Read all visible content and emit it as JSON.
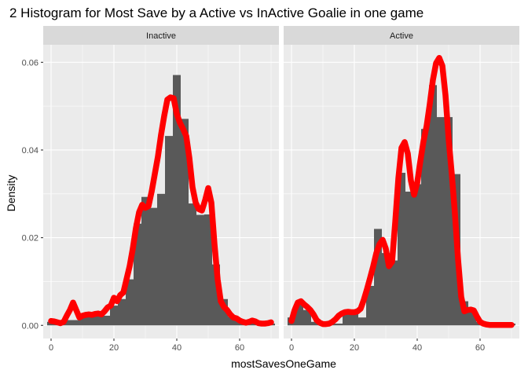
{
  "chart_data": {
    "type": "histogram-density",
    "title": "2 Histogram for Most Save by a Active vs InActive Goalie in one game",
    "xlabel": "mostSavesOneGame",
    "ylabel": "Density",
    "xlim": [
      -2.5,
      72.5
    ],
    "ylim": [
      -0.003,
      0.064
    ],
    "x_ticks": [
      0,
      20,
      40,
      60
    ],
    "x_tick_labels": [
      "0",
      "20",
      "40",
      "60"
    ],
    "y_ticks": [
      0,
      0.02,
      0.04,
      0.06
    ],
    "y_tick_labels": [
      "0.00",
      "0.02",
      "0.04",
      "0.06"
    ],
    "bin_width": 2.5,
    "grid": true,
    "colors": {
      "panel": "#ebebeb",
      "grid": "#ffffff",
      "strip": "#d9d9d9",
      "bar": "#595959",
      "density": "#ff0000"
    },
    "panels": [
      {
        "strip_label": "Inactive",
        "bins": [
          {
            "x0": -1.25,
            "density": 0.0008
          },
          {
            "x0": 1.25,
            "density": 0.0006
          },
          {
            "x0": 3.75,
            "density": 0.0012
          },
          {
            "x0": 6.25,
            "density": 0.0012
          },
          {
            "x0": 8.75,
            "density": 0.0022
          },
          {
            "x0": 11.25,
            "density": 0.0022
          },
          {
            "x0": 13.75,
            "density": 0.0022
          },
          {
            "x0": 16.25,
            "density": 0.0022
          },
          {
            "x0": 18.75,
            "density": 0.0045
          },
          {
            "x0": 21.25,
            "density": 0.006
          },
          {
            "x0": 23.75,
            "density": 0.0105
          },
          {
            "x0": 26.25,
            "density": 0.0232
          },
          {
            "x0": 28.75,
            "density": 0.0293
          },
          {
            "x0": 31.25,
            "density": 0.0268
          },
          {
            "x0": 33.75,
            "density": 0.03
          },
          {
            "x0": 36.25,
            "density": 0.0432
          },
          {
            "x0": 38.75,
            "density": 0.0571
          },
          {
            "x0": 41.25,
            "density": 0.0471
          },
          {
            "x0": 43.75,
            "density": 0.0278
          },
          {
            "x0": 46.25,
            "density": 0.0252
          },
          {
            "x0": 48.75,
            "density": 0.0253
          },
          {
            "x0": 51.25,
            "density": 0.0139
          },
          {
            "x0": 53.75,
            "density": 0.006
          },
          {
            "x0": 56.25,
            "density": 0.002
          },
          {
            "x0": 58.75,
            "density": 0.0012
          },
          {
            "x0": 61.25,
            "density": 0.0008
          },
          {
            "x0": 63.75,
            "density": 0.0006
          },
          {
            "x0": 66.25,
            "density": 0.0004
          },
          {
            "x0": 68.75,
            "density": 0.0004
          }
        ],
        "density_curve": {
          "x": [
            0,
            1,
            2,
            3,
            4,
            5,
            6,
            7,
            8,
            9,
            10,
            11,
            12,
            13,
            14,
            15,
            16,
            17,
            18,
            19,
            20,
            21,
            22,
            23,
            24,
            25,
            26,
            27,
            28,
            29,
            30,
            31,
            32,
            33,
            34,
            35,
            36,
            37,
            38,
            39,
            40,
            41,
            42,
            43,
            44,
            45,
            46,
            47,
            48,
            49,
            50,
            51,
            52,
            53,
            54,
            55,
            56,
            57,
            58,
            59,
            60,
            61,
            62,
            63,
            64,
            65,
            66,
            67,
            68,
            69,
            70
          ],
          "y": [
            0.001,
            0.0009,
            0.0007,
            0.0005,
            0.0008,
            0.0022,
            0.0035,
            0.0052,
            0.0035,
            0.0018,
            0.0022,
            0.0024,
            0.0025,
            0.0024,
            0.0026,
            0.0027,
            0.0025,
            0.0032,
            0.0041,
            0.0045,
            0.0063,
            0.0055,
            0.0069,
            0.0075,
            0.0105,
            0.0135,
            0.0175,
            0.0222,
            0.0258,
            0.0275,
            0.0268,
            0.0272,
            0.0305,
            0.0345,
            0.0385,
            0.0435,
            0.0478,
            0.0515,
            0.052,
            0.0518,
            0.0482,
            0.0462,
            0.0448,
            0.0432,
            0.0382,
            0.0315,
            0.028,
            0.0265,
            0.0262,
            0.0285,
            0.0313,
            0.028,
            0.0185,
            0.0105,
            0.0055,
            0.0042,
            0.0035,
            0.0025,
            0.0018,
            0.0016,
            0.0011,
            0.0008,
            0.0006,
            0.0008,
            0.0011,
            0.0009,
            0.0005,
            0.0004,
            0.0004,
            0.0005,
            0.0007
          ]
        }
      },
      {
        "strip_label": "Active",
        "bins": [
          {
            "x0": -1.25,
            "density": 0.0018
          },
          {
            "x0": 1.25,
            "density": 0.0055
          },
          {
            "x0": 3.75,
            "density": 0.0035
          },
          {
            "x0": 6.25,
            "density": 0.0008
          },
          {
            "x0": 8.75,
            "density": 0.0004
          },
          {
            "x0": 11.25,
            "density": 0.0004
          },
          {
            "x0": 13.75,
            "density": 0.0004
          },
          {
            "x0": 16.25,
            "density": 0.0035
          },
          {
            "x0": 18.75,
            "density": 0.0035
          },
          {
            "x0": 21.25,
            "density": 0.0018
          },
          {
            "x0": 23.75,
            "density": 0.009
          },
          {
            "x0": 26.25,
            "density": 0.022
          },
          {
            "x0": 28.75,
            "density": 0.0165
          },
          {
            "x0": 31.25,
            "density": 0.0148
          },
          {
            "x0": 33.75,
            "density": 0.0348
          },
          {
            "x0": 36.25,
            "density": 0.0305
          },
          {
            "x0": 38.75,
            "density": 0.0322
          },
          {
            "x0": 41.25,
            "density": 0.0448
          },
          {
            "x0": 43.75,
            "density": 0.0548
          },
          {
            "x0": 46.25,
            "density": 0.0475
          },
          {
            "x0": 48.75,
            "density": 0.0475
          },
          {
            "x0": 51.25,
            "density": 0.0345
          },
          {
            "x0": 53.75,
            "density": 0.0055
          },
          {
            "x0": 56.25,
            "density": 0.0035
          },
          {
            "x0": 58.75,
            "density": 0.0008
          },
          {
            "x0": 61.25,
            "density": 0.0004
          },
          {
            "x0": 63.75,
            "density": 0.0004
          },
          {
            "x0": 66.25,
            "density": 0.0004
          },
          {
            "x0": 68.75,
            "density": 0.0004
          }
        ],
        "density_curve": {
          "x": [
            0,
            1,
            2,
            3,
            4,
            5,
            6,
            7,
            8,
            9,
            10,
            11,
            12,
            13,
            14,
            15,
            16,
            17,
            18,
            19,
            20,
            21,
            22,
            23,
            24,
            25,
            26,
            27,
            28,
            29,
            30,
            31,
            32,
            33,
            34,
            35,
            36,
            37,
            38,
            39,
            40,
            41,
            42,
            43,
            44,
            45,
            46,
            47,
            48,
            49,
            50,
            51,
            52,
            53,
            54,
            55,
            56,
            57,
            58,
            59,
            60,
            61,
            62,
            63,
            64,
            65,
            66,
            67,
            68,
            69,
            70
          ],
          "y": [
            0.001,
            0.0035,
            0.0052,
            0.0055,
            0.0048,
            0.0042,
            0.0035,
            0.0025,
            0.0012,
            0.0006,
            0.0003,
            0.0003,
            0.0004,
            0.0008,
            0.0014,
            0.0022,
            0.0027,
            0.003,
            0.0031,
            0.003,
            0.003,
            0.0032,
            0.0038,
            0.0058,
            0.0082,
            0.0108,
            0.0135,
            0.0165,
            0.0185,
            0.0195,
            0.0175,
            0.0135,
            0.0145,
            0.0235,
            0.0335,
            0.0405,
            0.0418,
            0.0392,
            0.033,
            0.0298,
            0.0325,
            0.0375,
            0.042,
            0.0455,
            0.0505,
            0.056,
            0.0598,
            0.061,
            0.0592,
            0.0525,
            0.0425,
            0.0345,
            0.0255,
            0.015,
            0.0065,
            0.0032,
            0.0035,
            0.0036,
            0.0034,
            0.002,
            0.0008,
            0.0004,
            0.0002,
            0.0001,
            0.0001,
            0.0001,
            0.0001,
            0.0001,
            0.0001,
            0.0001,
            0.0001
          ]
        }
      }
    ]
  }
}
